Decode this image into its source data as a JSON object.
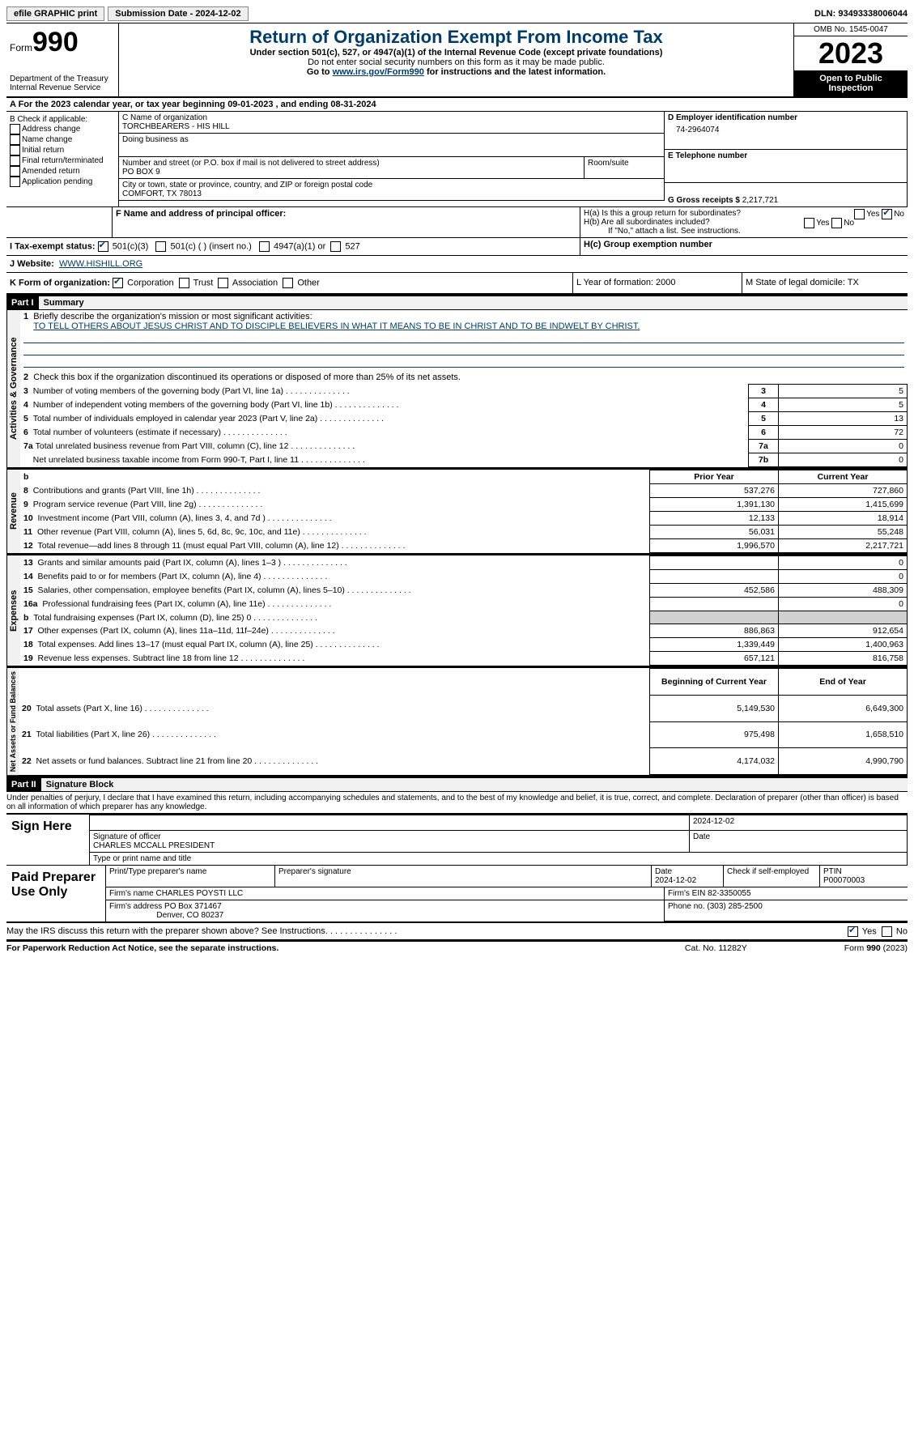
{
  "topbar": {
    "btn1": "efile GRAPHIC print",
    "btn2": "Submission Date - 2024-12-02",
    "dln": "DLN: 93493338006044"
  },
  "header": {
    "form_label": "Form",
    "form_num": "990",
    "title": "Return of Organization Exempt From Income Tax",
    "sub1": "Under section 501(c), 527, or 4947(a)(1) of the Internal Revenue Code (except private foundations)",
    "sub2": "Do not enter social security numbers on this form as it may be made public.",
    "sub3_pre": "Go to ",
    "sub3_link": "www.irs.gov/Form990",
    "sub3_post": " for instructions and the latest information.",
    "dept": "Department of the Treasury",
    "irs": "Internal Revenue Service",
    "omb": "OMB No. 1545-0047",
    "year": "2023",
    "open": "Open to Public Inspection"
  },
  "rowA": "A For the 2023 calendar year, or tax year beginning 09-01-2023    , and ending 08-31-2024",
  "B": {
    "hdr": "B Check if applicable:",
    "o1": "Address change",
    "o2": "Name change",
    "o3": "Initial return",
    "o4": "Final return/terminated",
    "o5": "Amended return",
    "o6": "Application pending"
  },
  "C": {
    "name_lbl": "C Name of organization",
    "name": "TORCHBEARERS - HIS HILL",
    "dba": "Doing business as",
    "addr_lbl": "Number and street (or P.O. box if mail is not delivered to street address)",
    "addr": "PO BOX 9",
    "room": "Room/suite",
    "city_lbl": "City or town, state or province, country, and ZIP or foreign postal code",
    "city": "COMFORT, TX  78013"
  },
  "D": {
    "lbl": "D Employer identification number",
    "val": "74-2964074"
  },
  "E": {
    "lbl": "E Telephone number"
  },
  "G": {
    "lbl": "G Gross receipts $",
    "val": "2,217,721"
  },
  "F": {
    "lbl": "F  Name and address of principal officer:"
  },
  "H": {
    "a": "H(a)  Is this a group return for subordinates?",
    "b": "H(b)  Are all subordinates included?",
    "note": "If \"No,\" attach a list. See instructions.",
    "c": "H(c)  Group exemption number ",
    "yes": "Yes",
    "no": "No"
  },
  "I": {
    "lbl": "I    Tax-exempt status:",
    "o1": "501(c)(3)",
    "o2": "501(c) (   ) (insert no.)",
    "o3": "4947(a)(1) or",
    "o4": "527"
  },
  "J": {
    "lbl": "J    Website:",
    "val": "WWW.HISHILL.ORG"
  },
  "K": {
    "lbl": "K Form of organization:",
    "o1": "Corporation",
    "o2": "Trust",
    "o3": "Association",
    "o4": "Other"
  },
  "L": {
    "lbl": "L Year of formation: 2000"
  },
  "M": {
    "lbl": "M State of legal domicile: TX"
  },
  "part1": {
    "hdr": "Part I",
    "title": "Summary"
  },
  "summary": {
    "l1": "Briefly describe the organization's mission or most significant activities:",
    "l1v": "TO TELL OTHERS ABOUT JESUS CHRIST AND TO DISCIPLE BELIEVERS IN WHAT IT MEANS TO BE IN CHRIST AND TO BE INDWELT BY CHRIST.",
    "l2": "Check this box         if the organization discontinued its operations or disposed of more than 25% of its net assets.",
    "l3": "Number of voting members of the governing body (Part VI, line 1a)",
    "v3": "5",
    "l4": "Number of independent voting members of the governing body (Part VI, line 1b)",
    "v4": "5",
    "l5": "Total number of individuals employed in calendar year 2023 (Part V, line 2a)",
    "v5": "13",
    "l6": "Total number of volunteers (estimate if necessary)",
    "v6": "72",
    "l7a": "Total unrelated business revenue from Part VIII, column (C), line 12",
    "v7a": "0",
    "l7b": "Net unrelated business taxable income from Form 990-T, Part I, line 11",
    "v7b": "0",
    "prior": "Prior Year",
    "curr": "Current Year",
    "rows": [
      {
        "n": "8",
        "t": "Contributions and grants (Part VIII, line 1h)",
        "p": "537,276",
        "c": "727,860"
      },
      {
        "n": "9",
        "t": "Program service revenue (Part VIII, line 2g)",
        "p": "1,391,130",
        "c": "1,415,699"
      },
      {
        "n": "10",
        "t": "Investment income (Part VIII, column (A), lines 3, 4, and 7d )",
        "p": "12,133",
        "c": "18,914"
      },
      {
        "n": "11",
        "t": "Other revenue (Part VIII, column (A), lines 5, 6d, 8c, 9c, 10c, and 11e)",
        "p": "56,031",
        "c": "55,248"
      },
      {
        "n": "12",
        "t": "Total revenue—add lines 8 through 11 (must equal Part VIII, column (A), line 12)",
        "p": "1,996,570",
        "c": "2,217,721"
      },
      {
        "n": "13",
        "t": "Grants and similar amounts paid (Part IX, column (A), lines 1–3 )",
        "p": "",
        "c": "0"
      },
      {
        "n": "14",
        "t": "Benefits paid to or for members (Part IX, column (A), line 4)",
        "p": "",
        "c": "0"
      },
      {
        "n": "15",
        "t": "Salaries, other compensation, employee benefits (Part IX, column (A), lines 5–10)",
        "p": "452,586",
        "c": "488,309"
      },
      {
        "n": "16a",
        "t": "Professional fundraising fees (Part IX, column (A), line 11e)",
        "p": "",
        "c": "0"
      },
      {
        "n": "b",
        "t": "Total fundraising expenses (Part IX, column (D), line 25) 0",
        "p": "shade",
        "c": "shade"
      },
      {
        "n": "17",
        "t": "Other expenses (Part IX, column (A), lines 11a–11d, 11f–24e)",
        "p": "886,863",
        "c": "912,654"
      },
      {
        "n": "18",
        "t": "Total expenses. Add lines 13–17 (must equal Part IX, column (A), line 25)",
        "p": "1,339,449",
        "c": "1,400,963"
      },
      {
        "n": "19",
        "t": "Revenue less expenses. Subtract line 18 from line 12",
        "p": "657,121",
        "c": "816,758"
      }
    ],
    "begin": "Beginning of Current Year",
    "end": "End of Year",
    "net": [
      {
        "n": "20",
        "t": "Total assets (Part X, line 16)",
        "p": "5,149,530",
        "c": "6,649,300"
      },
      {
        "n": "21",
        "t": "Total liabilities (Part X, line 26)",
        "p": "975,498",
        "c": "1,658,510"
      },
      {
        "n": "22",
        "t": "Net assets or fund balances. Subtract line 21 from line 20",
        "p": "4,174,032",
        "c": "4,990,790"
      }
    ],
    "vert1": "Activities & Governance",
    "vert2": "Revenue",
    "vert3": "Expenses",
    "vert4": "Net Assets or Fund Balances"
  },
  "part2": {
    "hdr": "Part II",
    "title": "Signature Block",
    "decl": "Under penalties of perjury, I declare that I have examined this return, including accompanying schedules and statements, and to the best of my knowledge and belief, it is true, correct, and complete. Declaration of preparer (other than officer) is based on all information of which preparer has any knowledge."
  },
  "sign": {
    "here": "Sign Here",
    "sig_lbl": "Signature of officer",
    "date_lbl": "Date",
    "date": "2024-12-02",
    "name": "CHARLES MCCALL  PRESIDENT",
    "name_lbl": "Type or print name and title"
  },
  "paid": {
    "hdr": "Paid Preparer Use Only",
    "c1": "Print/Type preparer's name",
    "c2": "Preparer's signature",
    "c3": "Date",
    "c3v": "2024-12-02",
    "c4": "Check         if self-employed",
    "c5": "PTIN",
    "c5v": "P00070003",
    "f1": "Firm's name      CHARLES POYSTI LLC",
    "f2": "Firm's EIN  82-3350055",
    "a1": "Firm's address PO Box 371467",
    "a2": "Denver, CO  80237",
    "p": "Phone no. (303) 285-2500"
  },
  "discuss": "May the IRS discuss this return with the preparer shown above? See Instructions.",
  "footer": {
    "l": "For Paperwork Reduction Act Notice, see the separate instructions.",
    "m": "Cat. No. 11282Y",
    "r": "Form 990 (2023)"
  }
}
